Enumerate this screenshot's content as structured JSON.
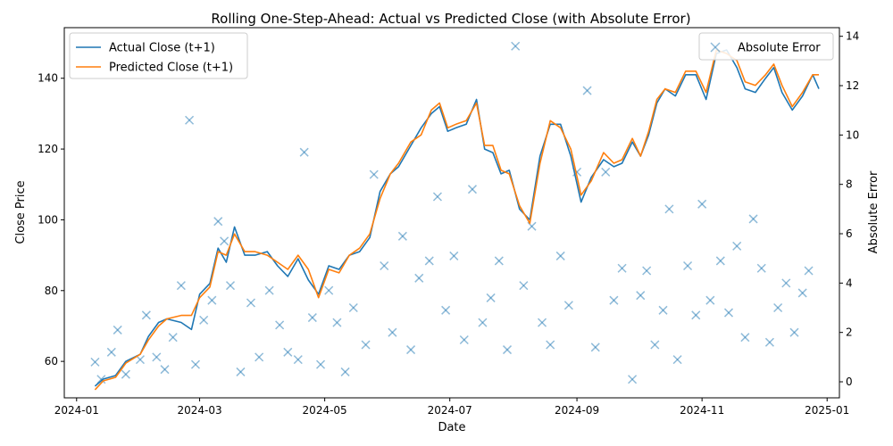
{
  "chart_data": {
    "type": "line",
    "title": "Rolling One-Step-Ahead: Actual vs Predicted Close (with Absolute Error)",
    "xlabel": "Date",
    "ylabel": "Close Price",
    "ylabel_right": "Absolute Error",
    "x_range": [
      "2023-12-26",
      "2025-01-07"
    ],
    "ylim": [
      49.7,
      154.3
    ],
    "ylim_right": [
      -0.65,
      14.35
    ],
    "x_ticks": [
      "2024-01",
      "2024-03",
      "2024-05",
      "2024-07",
      "2024-09",
      "2024-11",
      "2025-01"
    ],
    "y_ticks": [
      60,
      80,
      100,
      120,
      140
    ],
    "y_ticks_right": [
      0,
      2,
      4,
      6,
      8,
      10,
      12,
      14
    ],
    "legend_left": [
      "Actual Close (t+1)",
      "Predicted Close (t+1)"
    ],
    "legend_right": [
      "Absolute Error"
    ],
    "colors": {
      "actual": "#1f77b4",
      "predicted": "#ff7f0e",
      "error": "#1f77b4"
    },
    "series": [
      {
        "name": "Actual Close (t+1)",
        "points": [
          [
            "2024-01-10",
            53
          ],
          [
            "2024-01-14",
            55
          ],
          [
            "2024-01-20",
            56
          ],
          [
            "2024-01-25",
            60
          ],
          [
            "2024-02-01",
            62
          ],
          [
            "2024-02-05",
            67
          ],
          [
            "2024-02-10",
            71
          ],
          [
            "2024-02-14",
            72
          ],
          [
            "2024-02-21",
            71
          ],
          [
            "2024-02-26",
            69
          ],
          [
            "2024-03-01",
            79
          ],
          [
            "2024-03-06",
            82
          ],
          [
            "2024-03-10",
            92
          ],
          [
            "2024-03-14",
            88
          ],
          [
            "2024-03-18",
            98
          ],
          [
            "2024-03-23",
            90
          ],
          [
            "2024-03-28",
            90
          ],
          [
            "2024-04-03",
            91
          ],
          [
            "2024-04-08",
            87
          ],
          [
            "2024-04-13",
            84
          ],
          [
            "2024-04-18",
            89
          ],
          [
            "2024-04-23",
            83
          ],
          [
            "2024-04-28",
            79
          ],
          [
            "2024-05-03",
            87
          ],
          [
            "2024-05-08",
            86
          ],
          [
            "2024-05-13",
            90
          ],
          [
            "2024-05-18",
            91
          ],
          [
            "2024-05-23",
            95
          ],
          [
            "2024-05-28",
            108
          ],
          [
            "2024-06-02",
            113
          ],
          [
            "2024-06-06",
            115
          ],
          [
            "2024-06-12",
            121
          ],
          [
            "2024-06-17",
            126
          ],
          [
            "2024-06-22",
            130
          ],
          [
            "2024-06-26",
            132
          ],
          [
            "2024-06-30",
            125
          ],
          [
            "2024-07-04",
            126
          ],
          [
            "2024-07-09",
            127
          ],
          [
            "2024-07-14",
            134
          ],
          [
            "2024-07-18",
            120
          ],
          [
            "2024-07-22",
            119
          ],
          [
            "2024-07-26",
            113
          ],
          [
            "2024-07-30",
            114
          ],
          [
            "2024-08-04",
            103
          ],
          [
            "2024-08-09",
            100
          ],
          [
            "2024-08-14",
            118
          ],
          [
            "2024-08-19",
            127
          ],
          [
            "2024-08-24",
            127
          ],
          [
            "2024-08-29",
            118
          ],
          [
            "2024-09-03",
            105
          ],
          [
            "2024-09-08",
            112
          ],
          [
            "2024-09-14",
            117
          ],
          [
            "2024-09-19",
            115
          ],
          [
            "2024-09-23",
            116
          ],
          [
            "2024-09-28",
            122
          ],
          [
            "2024-10-02",
            118
          ],
          [
            "2024-10-06",
            124
          ],
          [
            "2024-10-10",
            133
          ],
          [
            "2024-10-14",
            137
          ],
          [
            "2024-10-19",
            135
          ],
          [
            "2024-10-24",
            141
          ],
          [
            "2024-10-29",
            141
          ],
          [
            "2024-11-03",
            134
          ],
          [
            "2024-11-08",
            147
          ],
          [
            "2024-11-13",
            148
          ],
          [
            "2024-11-18",
            143
          ],
          [
            "2024-11-22",
            137
          ],
          [
            "2024-11-27",
            136
          ],
          [
            "2024-12-02",
            140
          ],
          [
            "2024-12-06",
            143
          ],
          [
            "2024-12-10",
            136
          ],
          [
            "2024-12-15",
            131
          ],
          [
            "2024-12-20",
            135
          ],
          [
            "2024-12-25",
            141
          ],
          [
            "2024-12-28",
            137
          ]
        ]
      },
      {
        "name": "Predicted Close (t+1)",
        "points": [
          [
            "2024-01-10",
            52
          ],
          [
            "2024-01-14",
            54.5
          ],
          [
            "2024-01-20",
            55.5
          ],
          [
            "2024-01-25",
            59.5
          ],
          [
            "2024-02-01",
            62
          ],
          [
            "2024-02-05",
            66
          ],
          [
            "2024-02-10",
            70
          ],
          [
            "2024-02-14",
            72
          ],
          [
            "2024-02-21",
            73
          ],
          [
            "2024-02-26",
            73
          ],
          [
            "2024-03-01",
            78
          ],
          [
            "2024-03-06",
            81
          ],
          [
            "2024-03-10",
            91
          ],
          [
            "2024-03-14",
            90
          ],
          [
            "2024-03-18",
            96
          ],
          [
            "2024-03-23",
            91
          ],
          [
            "2024-03-28",
            91
          ],
          [
            "2024-04-03",
            90
          ],
          [
            "2024-04-08",
            88
          ],
          [
            "2024-04-13",
            86
          ],
          [
            "2024-04-18",
            90
          ],
          [
            "2024-04-23",
            86
          ],
          [
            "2024-04-28",
            78
          ],
          [
            "2024-05-03",
            86
          ],
          [
            "2024-05-08",
            85
          ],
          [
            "2024-05-13",
            90
          ],
          [
            "2024-05-18",
            92
          ],
          [
            "2024-05-23",
            96
          ],
          [
            "2024-05-28",
            106
          ],
          [
            "2024-06-02",
            113
          ],
          [
            "2024-06-06",
            116
          ],
          [
            "2024-06-12",
            122
          ],
          [
            "2024-06-17",
            124
          ],
          [
            "2024-06-22",
            131
          ],
          [
            "2024-06-26",
            133
          ],
          [
            "2024-06-30",
            126
          ],
          [
            "2024-07-04",
            127
          ],
          [
            "2024-07-09",
            128
          ],
          [
            "2024-07-14",
            133
          ],
          [
            "2024-07-18",
            121
          ],
          [
            "2024-07-22",
            121
          ],
          [
            "2024-07-26",
            114
          ],
          [
            "2024-07-30",
            113
          ],
          [
            "2024-08-04",
            104
          ],
          [
            "2024-08-09",
            99
          ],
          [
            "2024-08-14",
            116
          ],
          [
            "2024-08-19",
            128
          ],
          [
            "2024-08-24",
            126
          ],
          [
            "2024-08-29",
            120
          ],
          [
            "2024-09-03",
            107
          ],
          [
            "2024-09-08",
            111
          ],
          [
            "2024-09-14",
            119
          ],
          [
            "2024-09-19",
            116
          ],
          [
            "2024-09-23",
            117
          ],
          [
            "2024-09-28",
            123
          ],
          [
            "2024-10-02",
            118
          ],
          [
            "2024-10-06",
            125
          ],
          [
            "2024-10-10",
            134
          ],
          [
            "2024-10-14",
            137
          ],
          [
            "2024-10-19",
            136
          ],
          [
            "2024-10-24",
            142
          ],
          [
            "2024-10-29",
            142
          ],
          [
            "2024-11-03",
            136
          ],
          [
            "2024-11-08",
            148
          ],
          [
            "2024-11-13",
            147
          ],
          [
            "2024-11-18",
            145
          ],
          [
            "2024-11-22",
            139
          ],
          [
            "2024-11-27",
            138
          ],
          [
            "2024-12-02",
            141
          ],
          [
            "2024-12-06",
            144
          ],
          [
            "2024-12-10",
            138
          ],
          [
            "2024-12-15",
            132
          ],
          [
            "2024-12-20",
            136
          ],
          [
            "2024-12-25",
            141
          ],
          [
            "2024-12-28",
            141
          ]
        ]
      },
      {
        "name": "Absolute Error",
        "marker": "x",
        "points": [
          [
            "2024-01-10",
            0.8
          ],
          [
            "2024-01-13",
            0.1
          ],
          [
            "2024-01-18",
            1.2
          ],
          [
            "2024-01-21",
            2.1
          ],
          [
            "2024-01-25",
            0.3
          ],
          [
            "2024-02-01",
            0.9
          ],
          [
            "2024-02-04",
            2.7
          ],
          [
            "2024-02-09",
            1.0
          ],
          [
            "2024-02-13",
            0.5
          ],
          [
            "2024-02-17",
            1.8
          ],
          [
            "2024-02-21",
            3.9
          ],
          [
            "2024-02-25",
            10.6
          ],
          [
            "2024-02-28",
            0.7
          ],
          [
            "2024-03-03",
            2.5
          ],
          [
            "2024-03-07",
            3.3
          ],
          [
            "2024-03-10",
            6.5
          ],
          [
            "2024-03-13",
            5.7
          ],
          [
            "2024-03-16",
            3.9
          ],
          [
            "2024-03-21",
            0.4
          ],
          [
            "2024-03-26",
            3.2
          ],
          [
            "2024-03-30",
            1.0
          ],
          [
            "2024-04-04",
            3.7
          ],
          [
            "2024-04-09",
            2.3
          ],
          [
            "2024-04-13",
            1.2
          ],
          [
            "2024-04-18",
            0.9
          ],
          [
            "2024-04-21",
            9.3
          ],
          [
            "2024-04-25",
            2.6
          ],
          [
            "2024-04-29",
            0.7
          ],
          [
            "2024-05-03",
            3.7
          ],
          [
            "2024-05-07",
            2.4
          ],
          [
            "2024-05-11",
            0.4
          ],
          [
            "2024-05-15",
            3.0
          ],
          [
            "2024-05-21",
            1.5
          ],
          [
            "2024-05-25",
            8.4
          ],
          [
            "2024-05-30",
            4.7
          ],
          [
            "2024-06-03",
            2.0
          ],
          [
            "2024-06-08",
            5.9
          ],
          [
            "2024-06-12",
            1.3
          ],
          [
            "2024-06-16",
            4.2
          ],
          [
            "2024-06-21",
            4.9
          ],
          [
            "2024-06-25",
            7.5
          ],
          [
            "2024-06-29",
            2.9
          ],
          [
            "2024-07-03",
            5.1
          ],
          [
            "2024-07-08",
            1.7
          ],
          [
            "2024-07-12",
            7.8
          ],
          [
            "2024-07-17",
            2.4
          ],
          [
            "2024-07-21",
            3.4
          ],
          [
            "2024-07-25",
            4.9
          ],
          [
            "2024-07-29",
            1.3
          ],
          [
            "2024-08-02",
            13.6
          ],
          [
            "2024-08-06",
            3.9
          ],
          [
            "2024-08-10",
            6.3
          ],
          [
            "2024-08-15",
            2.4
          ],
          [
            "2024-08-19",
            1.5
          ],
          [
            "2024-08-24",
            5.1
          ],
          [
            "2024-08-28",
            3.1
          ],
          [
            "2024-09-01",
            8.5
          ],
          [
            "2024-09-06",
            11.8
          ],
          [
            "2024-09-10",
            1.4
          ],
          [
            "2024-09-15",
            8.5
          ],
          [
            "2024-09-19",
            3.3
          ],
          [
            "2024-09-23",
            4.6
          ],
          [
            "2024-09-28",
            0.1
          ],
          [
            "2024-10-02",
            3.5
          ],
          [
            "2024-10-05",
            4.5
          ],
          [
            "2024-10-09",
            1.5
          ],
          [
            "2024-10-13",
            2.9
          ],
          [
            "2024-10-16",
            7.0
          ],
          [
            "2024-10-20",
            0.9
          ],
          [
            "2024-10-25",
            4.7
          ],
          [
            "2024-10-29",
            2.7
          ],
          [
            "2024-11-01",
            7.2
          ],
          [
            "2024-11-05",
            3.3
          ],
          [
            "2024-11-10",
            4.9
          ],
          [
            "2024-11-14",
            2.8
          ],
          [
            "2024-11-18",
            5.5
          ],
          [
            "2024-11-22",
            1.8
          ],
          [
            "2024-11-26",
            6.6
          ],
          [
            "2024-11-30",
            4.6
          ],
          [
            "2024-12-04",
            1.6
          ],
          [
            "2024-12-08",
            3.0
          ],
          [
            "2024-12-12",
            4.0
          ],
          [
            "2024-12-16",
            2.0
          ],
          [
            "2024-12-20",
            3.6
          ],
          [
            "2024-12-23",
            4.5
          ]
        ]
      }
    ]
  }
}
